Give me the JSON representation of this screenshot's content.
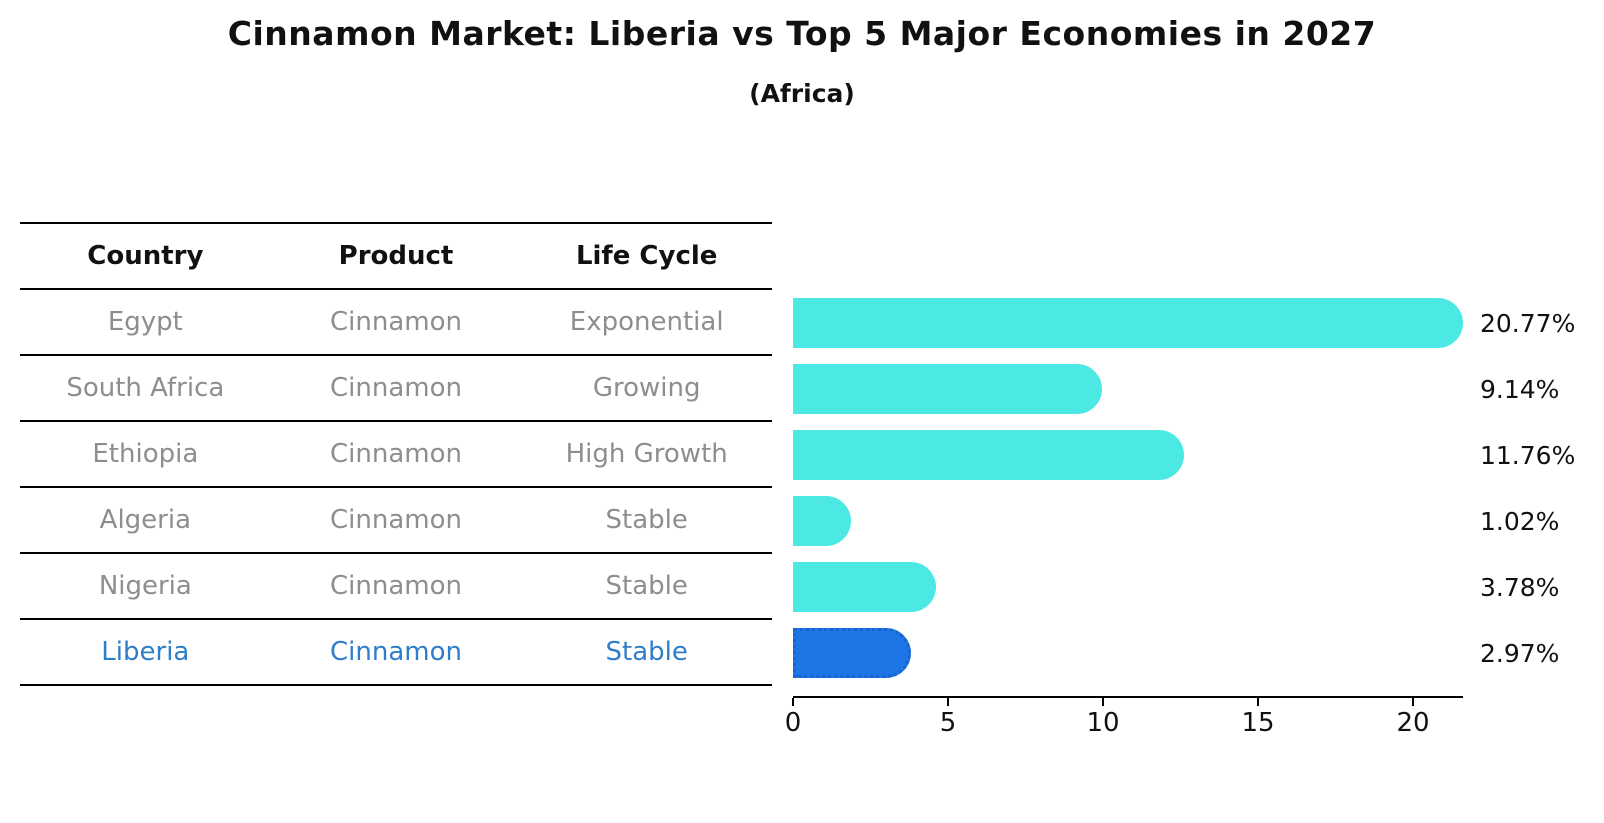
{
  "title": "Cinnamon Market: Liberia vs Top 5 Major Economies in 2027",
  "subtitle": "(Africa)",
  "table": {
    "headers": [
      "Country",
      "Product",
      "Life Cycle"
    ],
    "rows": [
      {
        "country": "Egypt",
        "product": "Cinnamon",
        "life_cycle": "Exponential",
        "highlight": false
      },
      {
        "country": "South Africa",
        "product": "Cinnamon",
        "life_cycle": "Growing",
        "highlight": false
      },
      {
        "country": "Ethiopia",
        "product": "Cinnamon",
        "life_cycle": "High Growth",
        "highlight": false
      },
      {
        "country": "Algeria",
        "product": "Cinnamon",
        "life_cycle": "Stable",
        "highlight": false
      },
      {
        "country": "Nigeria",
        "product": "Cinnamon",
        "life_cycle": "Stable",
        "highlight": false
      },
      {
        "country": "Liberia",
        "product": "Cinnamon",
        "life_cycle": "Stable",
        "highlight": true
      }
    ]
  },
  "chart_data": {
    "type": "bar",
    "orientation": "horizontal",
    "title": "Cinnamon Market: Liberia vs Top 5 Major Economies in 2027",
    "subtitle": "(Africa)",
    "categories": [
      "Egypt",
      "South Africa",
      "Ethiopia",
      "Algeria",
      "Nigeria",
      "Liberia"
    ],
    "values": [
      20.77,
      9.14,
      11.76,
      1.02,
      3.78,
      2.97
    ],
    "value_labels": [
      "20.77%",
      "9.14%",
      "11.76%",
      "1.02%",
      "3.78%",
      "2.97%"
    ],
    "x_ticks": [
      0,
      5,
      10,
      15,
      20
    ],
    "xlim": [
      0,
      21.6
    ],
    "grid": false,
    "legend": false,
    "highlight_category": "Liberia",
    "bar_color": "#4be8e4",
    "highlight_bar_color": "#1e76e6",
    "highlight_border_color": "#1863cf",
    "highlight_text_color": "#2f7ec9",
    "axis_color": "#000000",
    "label_color": "#111111",
    "table_text_color": "#8e8e8e"
  }
}
